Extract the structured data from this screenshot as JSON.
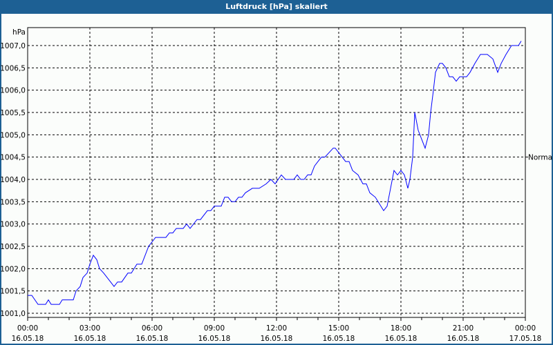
{
  "window": {
    "title": "Luftdruck [hPa] skaliert"
  },
  "chart_data": {
    "type": "line",
    "title": "Luftdruck [hPa] skaliert",
    "ylabel": "hPa",
    "xlabel": "",
    "ylim": [
      1001.0,
      1007.0
    ],
    "xlim": [
      "16.05.18 00:00",
      "17.05.18 00:00"
    ],
    "grid": true,
    "y_ticks": [
      "1001,0",
      "1001,5",
      "1002,0",
      "1002,5",
      "1003,0",
      "1003,5",
      "1004,0",
      "1004,5",
      "1005,0",
      "1005,5",
      "1006,0",
      "1006,5",
      "1007,0"
    ],
    "x_ticks": [
      {
        "time": "00:00",
        "date": "16.05.18"
      },
      {
        "time": "03:00",
        "date": "16.05.18"
      },
      {
        "time": "06:00",
        "date": "16.05.18"
      },
      {
        "time": "09:00",
        "date": "16.05.18"
      },
      {
        "time": "12:00",
        "date": "16.05.18"
      },
      {
        "time": "15:00",
        "date": "16.05.18"
      },
      {
        "time": "18:00",
        "date": "16.05.18"
      },
      {
        "time": "21:00",
        "date": "16.05.18"
      },
      {
        "time": "00:00",
        "date": "17.05.18"
      }
    ],
    "right_marker": {
      "label": "Normal",
      "value": 1004.5
    },
    "series": [
      {
        "color": "#0000ff",
        "x": [
          "00:00",
          "00:12",
          "00:30",
          "00:52",
          "01:00",
          "01:08",
          "01:32",
          "01:40",
          "02:12",
          "02:20",
          "02:32",
          "02:40",
          "02:52",
          "03:00",
          "03:10",
          "03:20",
          "03:28",
          "03:40",
          "04:00",
          "04:10",
          "04:20",
          "04:32",
          "04:50",
          "05:00",
          "05:16",
          "05:30",
          "05:50",
          "06:10",
          "06:40",
          "06:50",
          "07:00",
          "07:10",
          "07:30",
          "07:40",
          "07:50",
          "08:10",
          "08:20",
          "08:40",
          "08:50",
          "09:00",
          "09:20",
          "09:30",
          "09:40",
          "09:50",
          "10:00",
          "10:10",
          "10:20",
          "10:30",
          "10:50",
          "11:10",
          "11:30",
          "11:44",
          "11:56",
          "12:14",
          "12:26",
          "12:50",
          "13:00",
          "13:10",
          "13:20",
          "13:30",
          "13:40",
          "13:50",
          "14:00",
          "14:10",
          "14:20",
          "14:44",
          "14:50",
          "15:20",
          "15:30",
          "15:40",
          "15:56",
          "16:10",
          "16:20",
          "16:30",
          "16:46",
          "17:10",
          "17:20",
          "17:40",
          "17:50",
          "18:00",
          "18:10",
          "18:20",
          "18:26",
          "18:34",
          "18:40",
          "18:50",
          "19:00",
          "19:10",
          "19:20",
          "19:26",
          "19:34",
          "19:40",
          "19:52",
          "20:00",
          "20:10",
          "20:20",
          "20:30",
          "20:40",
          "20:50",
          "21:10",
          "21:20",
          "21:34",
          "21:50",
          "22:10",
          "22:26",
          "22:40",
          "22:50",
          "23:04",
          "23:20",
          "23:40",
          "23:48"
        ],
        "y": [
          1001.4,
          1001.4,
          1001.2,
          1001.2,
          1001.3,
          1001.2,
          1001.2,
          1001.3,
          1001.3,
          1001.5,
          1001.6,
          1001.8,
          1001.9,
          1002.1,
          1002.3,
          1002.2,
          1002.0,
          1001.9,
          1001.7,
          1001.6,
          1001.7,
          1001.7,
          1001.9,
          1001.9,
          1002.1,
          1002.1,
          1002.5,
          1002.7,
          1002.7,
          1002.8,
          1002.8,
          1002.9,
          1002.9,
          1003.0,
          1002.9,
          1003.1,
          1003.1,
          1003.3,
          1003.3,
          1003.4,
          1003.4,
          1003.6,
          1003.6,
          1003.5,
          1003.5,
          1003.6,
          1003.6,
          1003.7,
          1003.8,
          1003.8,
          1003.9,
          1004.0,
          1003.9,
          1004.1,
          1004.0,
          1004.0,
          1004.1,
          1004.0,
          1004.0,
          1004.1,
          1004.1,
          1004.3,
          1004.4,
          1004.5,
          1004.5,
          1004.7,
          1004.7,
          1004.4,
          1004.4,
          1004.2,
          1004.1,
          1003.9,
          1003.9,
          1003.7,
          1003.6,
          1003.3,
          1003.4,
          1004.2,
          1004.1,
          1004.2,
          1004.1,
          1003.8,
          1004.0,
          1004.5,
          1005.5,
          1005.1,
          1004.9,
          1004.7,
          1005.0,
          1005.5,
          1006.0,
          1006.4,
          1006.6,
          1006.6,
          1006.5,
          1006.3,
          1006.3,
          1006.2,
          1006.3,
          1006.3,
          1006.4,
          1006.6,
          1006.8,
          1006.8,
          1006.7,
          1006.4,
          1006.6,
          1006.8,
          1007.0,
          1007.0,
          1007.1
        ]
      }
    ]
  }
}
